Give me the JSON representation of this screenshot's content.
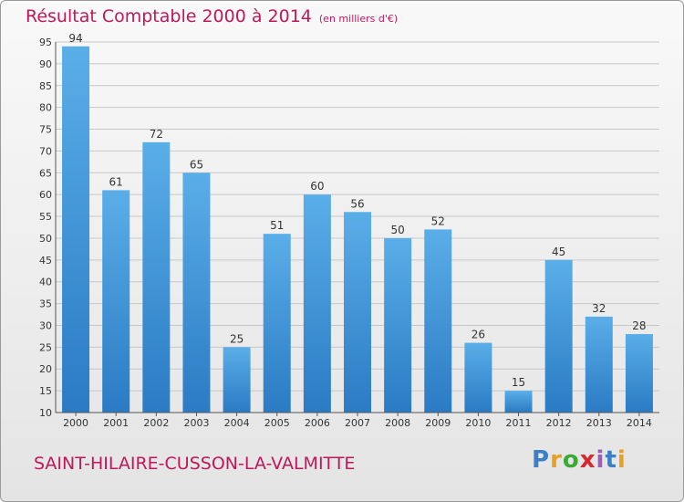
{
  "header": {
    "title": "Résultat Comptable 2000 à 2014",
    "subtitle": "(en milliers d'€)"
  },
  "footer": {
    "commune": "SAINT-HILAIRE-CUSSON-LA-VALMITTE",
    "logo_text": "Proxiti"
  },
  "colors": {
    "title": "#c0185a",
    "bar_light": "#5aaee8",
    "bar_dark": "#2a7bc4",
    "grid": "#c8c8c8"
  },
  "chart_data": {
    "type": "bar",
    "title": "Résultat Comptable 2000 à 2014",
    "ylabel": "en milliers d'€",
    "xlabel": "",
    "ylim": [
      10,
      95
    ],
    "yticks": [
      10,
      15,
      20,
      25,
      30,
      35,
      40,
      45,
      50,
      55,
      60,
      65,
      70,
      75,
      80,
      85,
      90,
      95
    ],
    "grid": true,
    "categories": [
      "2000",
      "2001",
      "2002",
      "2003",
      "2004",
      "2005",
      "2006",
      "2007",
      "2008",
      "2009",
      "2010",
      "2011",
      "2012",
      "2013",
      "2014"
    ],
    "values": [
      94,
      61,
      72,
      65,
      25,
      51,
      60,
      56,
      50,
      52,
      26,
      15,
      45,
      32,
      28
    ]
  }
}
